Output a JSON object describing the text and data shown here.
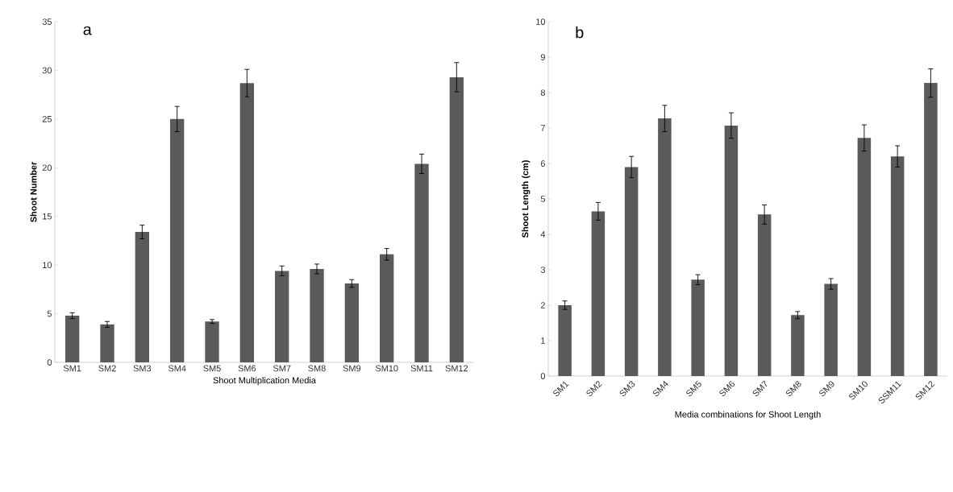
{
  "chart_data": [
    {
      "type": "bar",
      "annotations": [
        "a"
      ],
      "xlabel": "Shoot Multiplication  Media",
      "ylabel": "Shoot Number",
      "categories": [
        "SM1",
        "SM2",
        "SM3",
        "SM4",
        "SM5",
        "SM6",
        "SM7",
        "SM8",
        "SM9",
        "SM10",
        "SM11",
        "SM12"
      ],
      "values": [
        4.8,
        3.9,
        13.4,
        25.0,
        4.2,
        28.7,
        9.4,
        9.6,
        8.1,
        11.1,
        20.4,
        29.3
      ],
      "errors": [
        0.3,
        0.3,
        0.7,
        1.3,
        0.2,
        1.4,
        0.5,
        0.5,
        0.4,
        0.6,
        1.0,
        1.5
      ],
      "color": "#5a5a5a",
      "ylim": [
        0,
        35
      ],
      "yticks": [
        0,
        5,
        10,
        15,
        20,
        25,
        30,
        35
      ]
    },
    {
      "type": "bar",
      "annotations": [
        "b"
      ],
      "xlabel": "Media combinations  for Shoot Length",
      "ylabel": "Shoot Length (cm)",
      "categories": [
        "SM1",
        "SM2",
        "SM3",
        "SM4",
        "SM5",
        "SM6",
        "SM7",
        "SM8",
        "SM9",
        "SM10",
        "SSM11",
        "SM12"
      ],
      "values": [
        2.0,
        4.65,
        5.9,
        7.27,
        2.72,
        7.07,
        4.56,
        1.72,
        2.6,
        6.72,
        6.2,
        8.27
      ],
      "errors": [
        0.12,
        0.25,
        0.3,
        0.37,
        0.14,
        0.36,
        0.27,
        0.1,
        0.15,
        0.37,
        0.3,
        0.4
      ],
      "color": "#5a5a5a",
      "ylim": [
        0,
        10
      ],
      "yticks": [
        0,
        1,
        2,
        3,
        4,
        5,
        6,
        7,
        8,
        9,
        10
      ]
    }
  ]
}
